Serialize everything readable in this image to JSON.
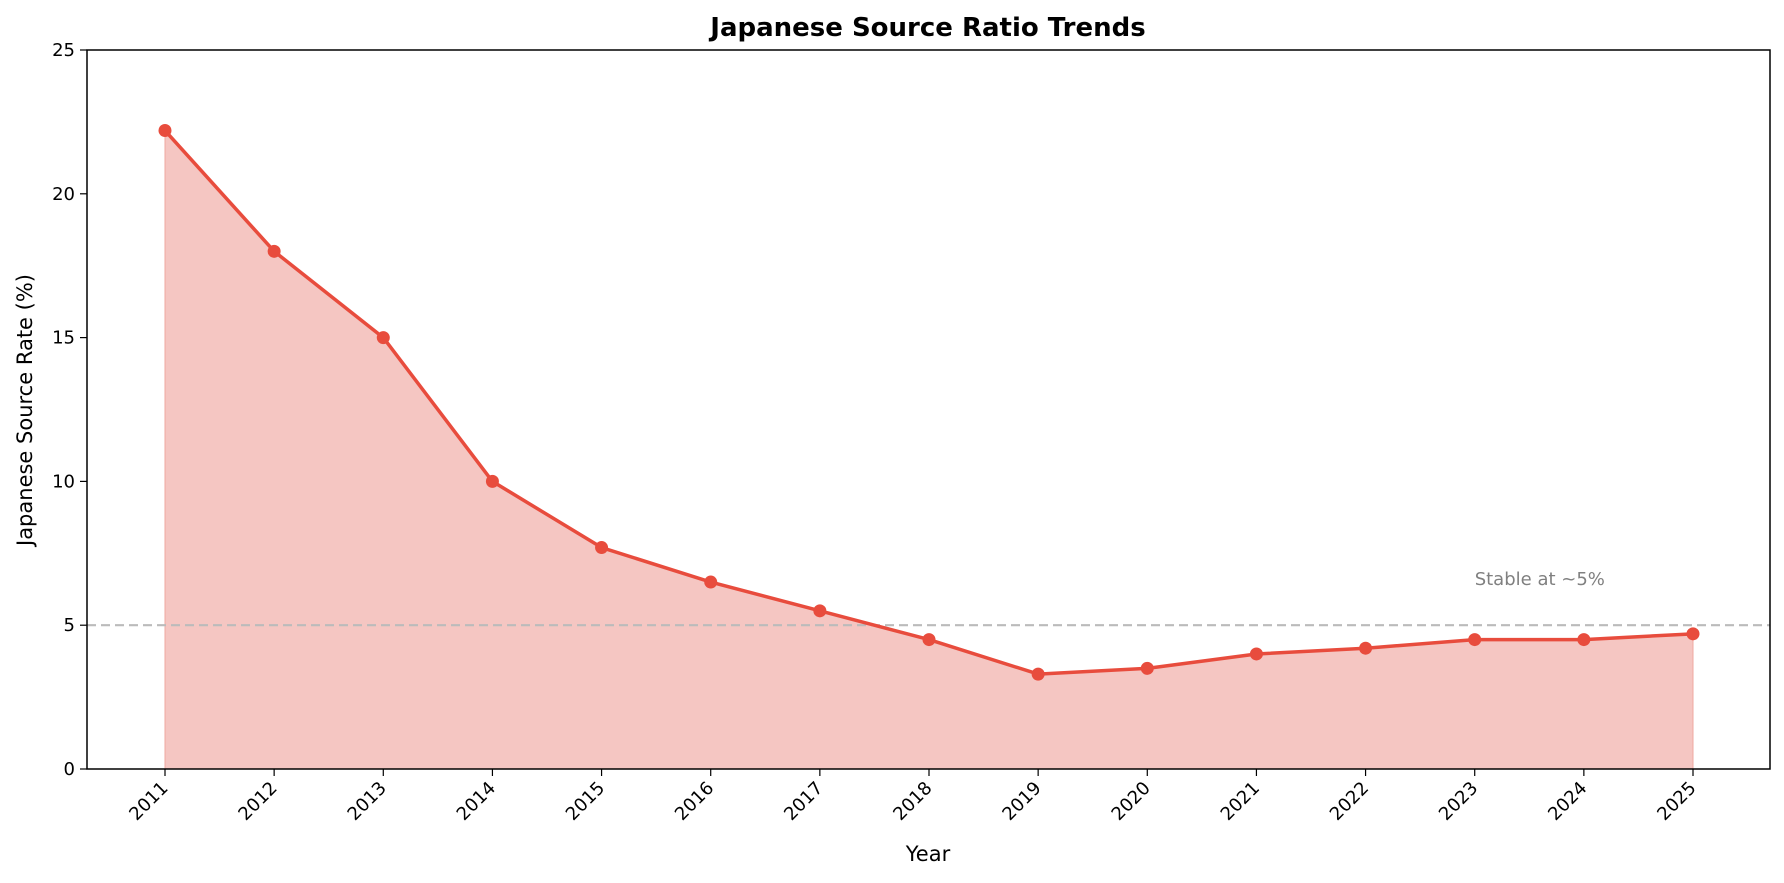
{
  "chart_data": {
    "type": "line",
    "title": "Japanese Source Ratio Trends",
    "xlabel": "Year",
    "ylabel": "Japanese Source Rate (%)",
    "x": [
      "2011",
      "2012",
      "2013",
      "2014",
      "2015",
      "2016",
      "2017",
      "2018",
      "2019",
      "2020",
      "2021",
      "2022",
      "2023",
      "2024",
      "2025"
    ],
    "series": [
      {
        "values": [
          22.2,
          18.0,
          15.0,
          10.0,
          7.7,
          6.5,
          5.5,
          4.5,
          3.3,
          3.5,
          4.0,
          4.2,
          4.5,
          4.5,
          4.7
        ]
      }
    ],
    "ylim": [
      0,
      25
    ],
    "yticks": [
      0,
      5,
      10,
      15,
      20,
      25
    ],
    "filled_area": true,
    "grid": false,
    "reference_line": {
      "y": 5,
      "style": "dashed",
      "color": "#bbbbbb"
    },
    "annotation": {
      "text": "Stable at ~5%",
      "x": "2023",
      "y": 6.6,
      "color": "#808080"
    },
    "colors": {
      "line": "#e84c3d",
      "fill": "#f5c6c2"
    }
  }
}
